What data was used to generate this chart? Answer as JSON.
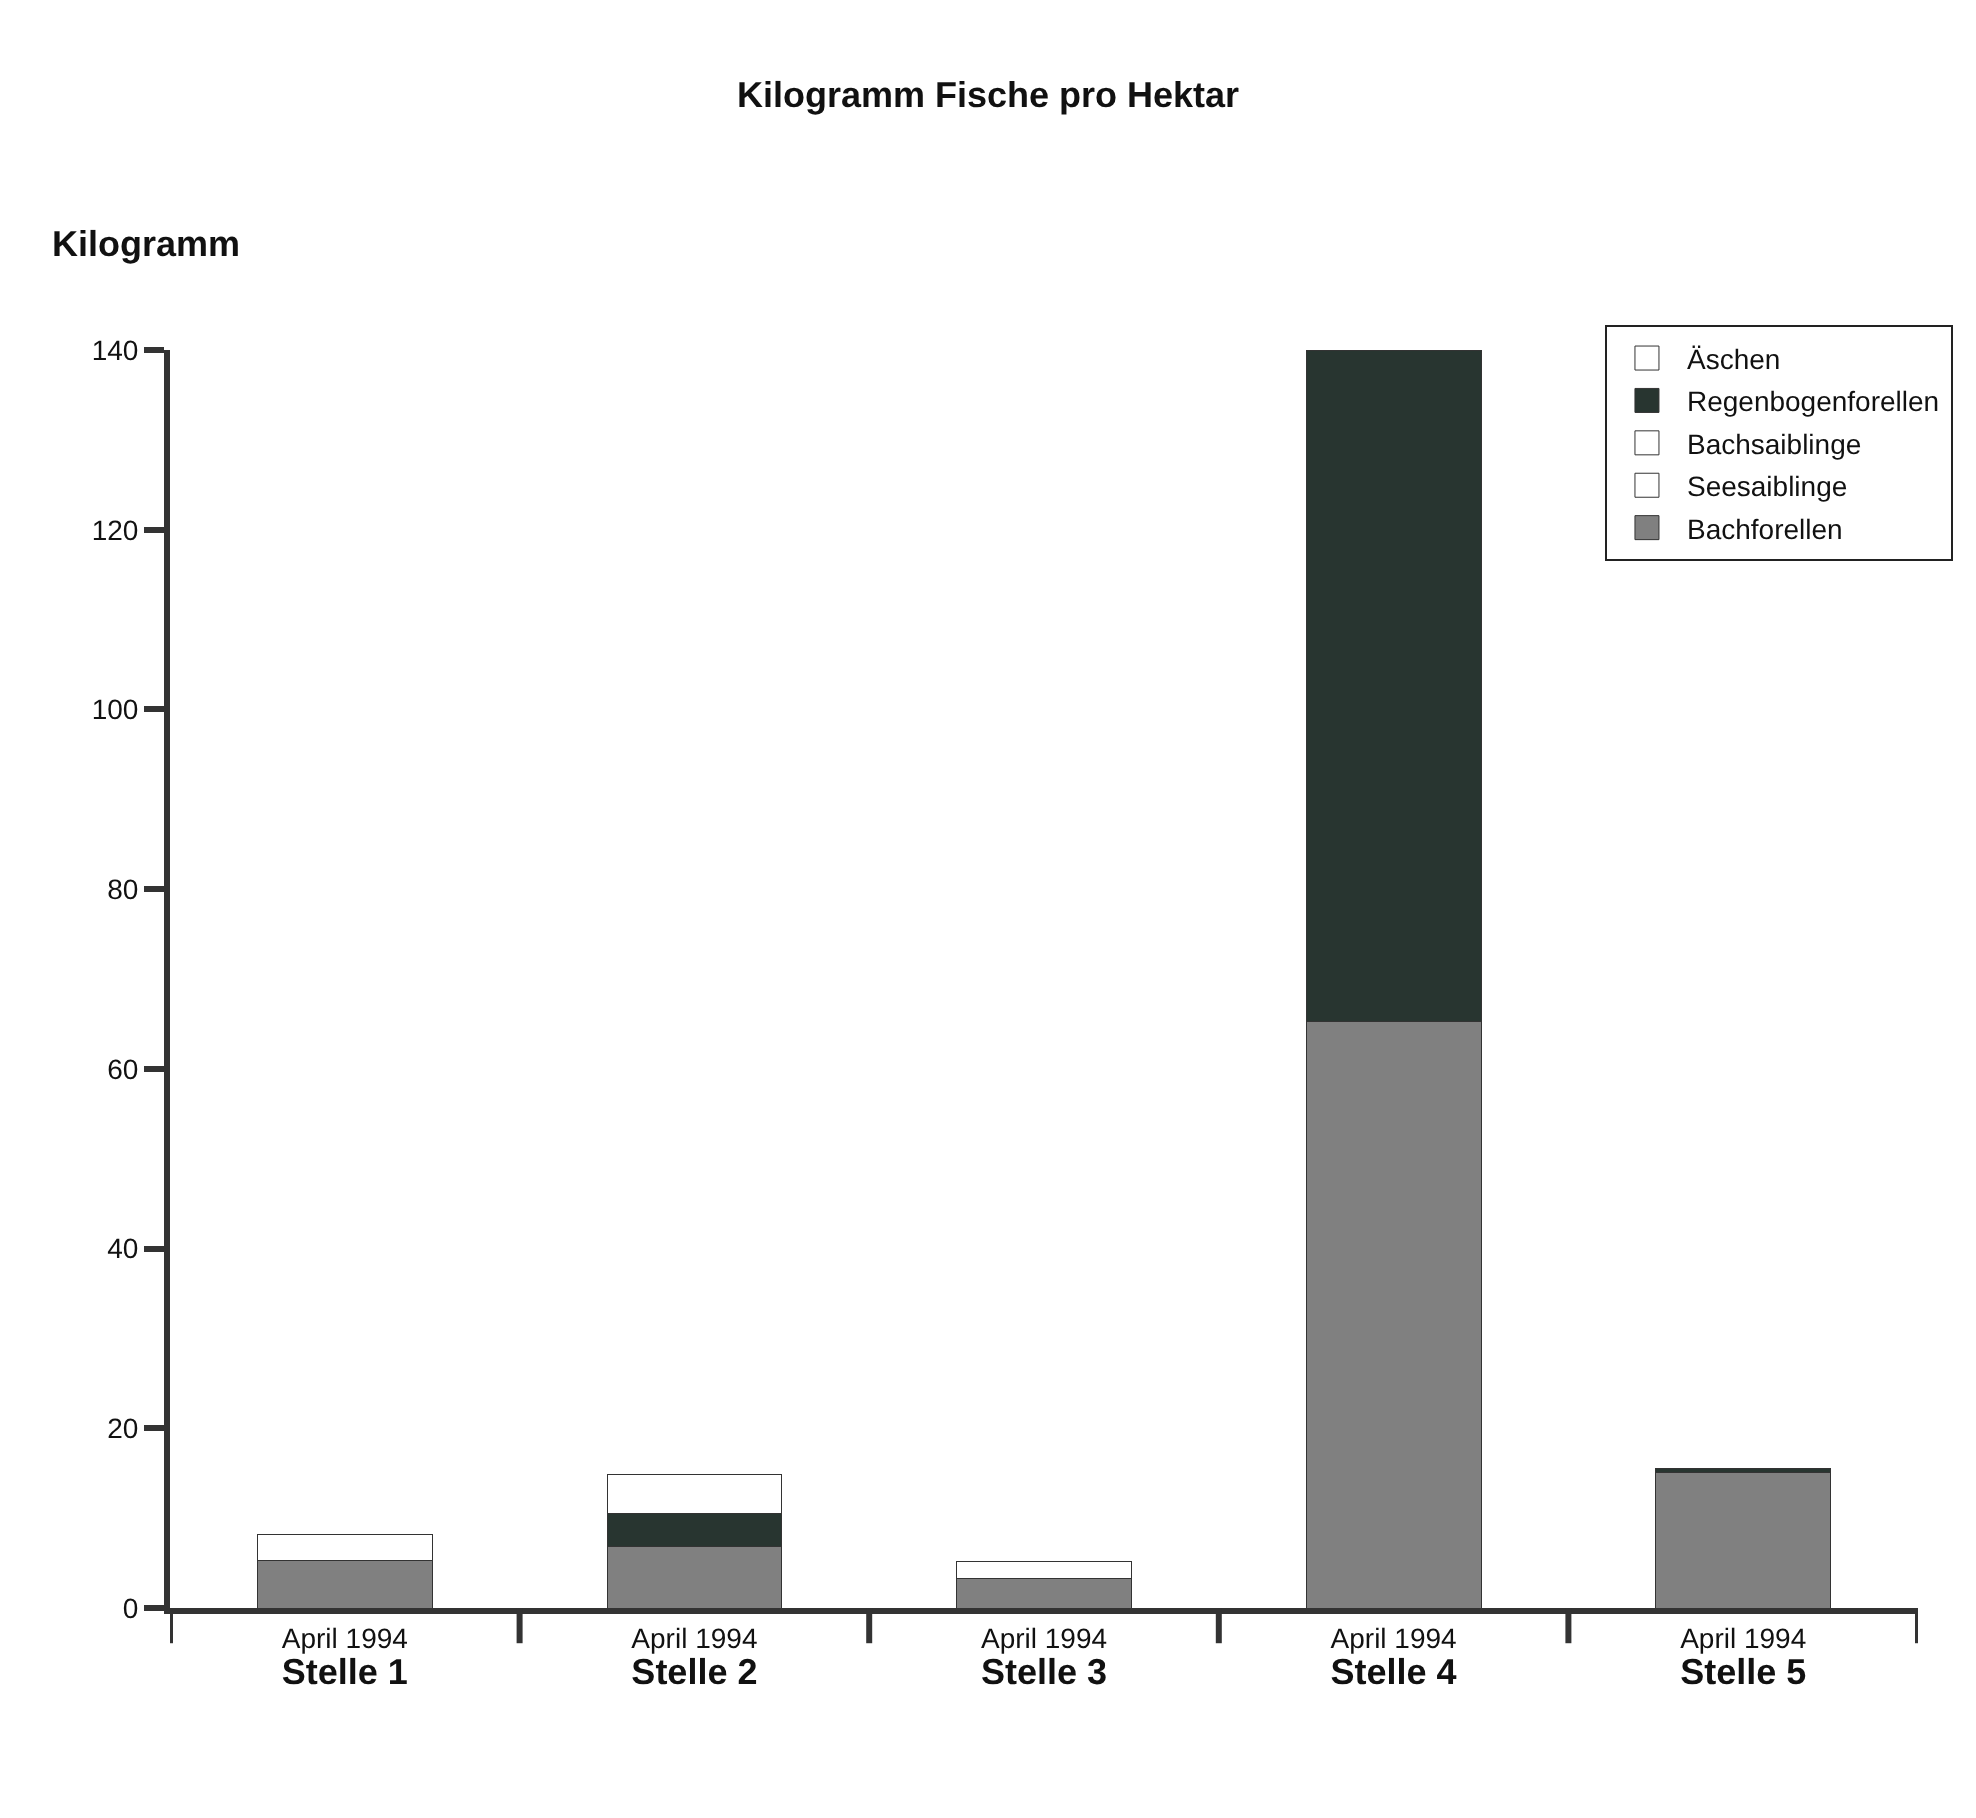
{
  "chart_data": {
    "type": "bar",
    "title": "Kilogramm Fische pro Hektar",
    "ylabel": "Kilogramm",
    "categories": [
      "April 1994\nStelle 1",
      "April 1994\nStelle 2",
      "April 1994\nStelle 3",
      "April 1994\nStelle 4",
      "April 1994\nStelle 5"
    ],
    "stacked": true,
    "series": [
      {
        "name": "Bachforellen",
        "color": "#808080",
        "values": [
          5.3,
          6.9,
          3.3,
          65.3,
          15.1
        ]
      },
      {
        "name": "Seesaiblinge",
        "color": "#ffffff",
        "values": [
          null,
          null,
          null,
          null,
          null
        ]
      },
      {
        "name": "Bachsaiblinge",
        "color": "#ffffff",
        "values": [
          null,
          null,
          null,
          null,
          null
        ]
      },
      {
        "name": "Regenbogenforellen",
        "color": "#283530",
        "values": [
          null,
          3.6,
          null,
          74.7,
          0.4
        ]
      },
      {
        "name": "Äschen",
        "color": "#ffffff",
        "values": [
          2.9,
          4.4,
          1.9,
          null,
          null
        ]
      }
    ],
    "ylim": [
      0,
      140
    ],
    "yticks": [
      0,
      20,
      40,
      60,
      80,
      100,
      120,
      140
    ],
    "grid": false,
    "legend": "top right"
  }
}
